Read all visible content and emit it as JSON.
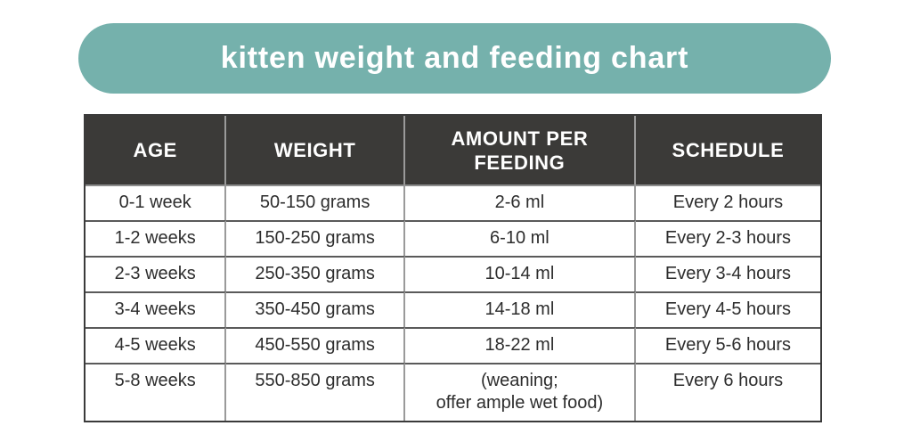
{
  "page": {
    "background": "#ffffff"
  },
  "banner": {
    "background": "#75b1ac",
    "text_color": "#ffffff"
  },
  "chart_data": {
    "type": "table",
    "title": "kitten weight and feeding chart",
    "columns": [
      "AGE",
      "WEIGHT",
      "AMOUNT PER FEEDING",
      "SCHEDULE"
    ],
    "rows": [
      [
        "0-1 week",
        "50-150 grams",
        "2-6 ml",
        "Every 2 hours"
      ],
      [
        "1-2 weeks",
        "150-250 grams",
        "6-10 ml",
        "Every 2-3 hours"
      ],
      [
        "2-3 weeks",
        "250-350 grams",
        "10-14 ml",
        "Every 3-4 hours"
      ],
      [
        "3-4 weeks",
        "350-450 grams",
        "14-18 ml",
        "Every 4-5 hours"
      ],
      [
        "4-5 weeks",
        "450-550 grams",
        "18-22 ml",
        "Every 5-6 hours"
      ],
      [
        "5-8 weeks",
        "550-850 grams",
        "(weaning;\noffer ample wet food)",
        "Every 6 hours"
      ]
    ],
    "header_bg": "#3b3a38",
    "header_text_color": "#ffffff",
    "body_text_color": "#2d2d2d",
    "grid_line_color": "#8c8c8c",
    "outer_border_color": "#3a3a3a",
    "legend_position": "none",
    "grid": "on"
  }
}
